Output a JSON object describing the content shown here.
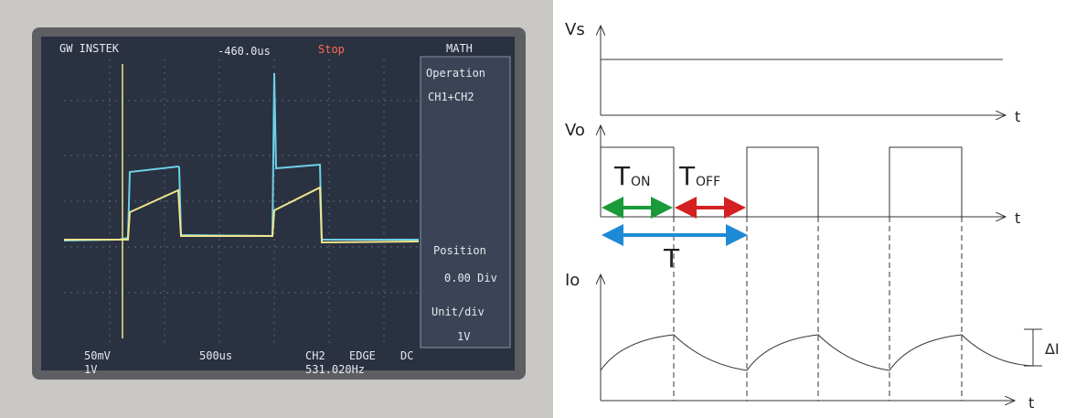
{
  "oscilloscope": {
    "brand": "GW INSTEK",
    "trigger_delay": "-460.0us",
    "status": "Stop",
    "menu": {
      "title": "MATH",
      "items": [
        "Operation",
        "CH1+CH2",
        "Position",
        "0.00 Div",
        "Unit/div",
        "1V"
      ]
    },
    "ch1_scale": "50mV",
    "ch2_scale": "1V",
    "timebase": "500us",
    "trigger_source": "CH2",
    "trigger_mode": "EDGE",
    "coupling": "DC",
    "frequency": "531.020Hz"
  },
  "diagram": {
    "axes": [
      {
        "label": "Vs",
        "time_label": "t"
      },
      {
        "label": "Vo",
        "time_label": "t"
      },
      {
        "label": "Io",
        "time_label": "t"
      }
    ],
    "t_on": {
      "main": "T",
      "sub": "ON"
    },
    "t_off": {
      "main": "T",
      "sub": "OFF"
    },
    "period": "T",
    "ripple": "ΔI"
  }
}
